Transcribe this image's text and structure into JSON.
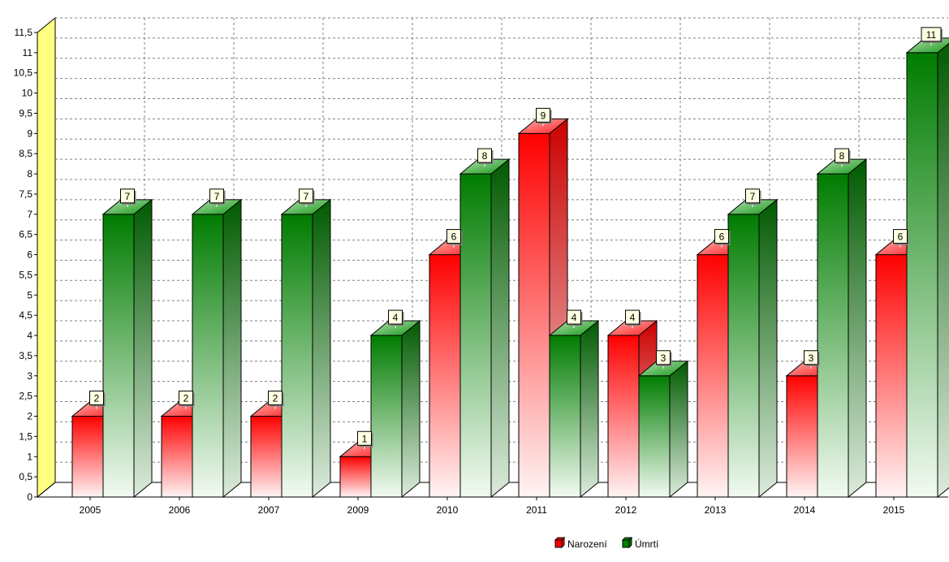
{
  "chart_data": {
    "type": "bar",
    "categories": [
      "2005",
      "2006",
      "2007",
      "2009",
      "2010",
      "2011",
      "2012",
      "2013",
      "2014",
      "2015"
    ],
    "series": [
      {
        "name": "Narození",
        "values": [
          2,
          2,
          2,
          1,
          6,
          9,
          4,
          6,
          3,
          6
        ]
      },
      {
        "name": "Úmrtí",
        "values": [
          7,
          7,
          7,
          4,
          8,
          4,
          3,
          7,
          8,
          11
        ]
      }
    ],
    "ylim": [
      0,
      11.5
    ],
    "yticks": [
      "0",
      "0,5",
      "1",
      "1,5",
      "2",
      "2,5",
      "3",
      "3,5",
      "4",
      "4,5",
      "5",
      "5,5",
      "6",
      "6,5",
      "7",
      "7,5",
      "8",
      "8,5",
      "9",
      "9,5",
      "10",
      "10,5",
      "11",
      "11,5"
    ],
    "grid": true,
    "legend": "bottom-right",
    "data_labels": true,
    "render": "3d",
    "colors": {
      "Narození": "#ff0000",
      "Úmrtí": "#008000",
      "back_wall": "#ffff80",
      "grid": "#808080"
    }
  }
}
